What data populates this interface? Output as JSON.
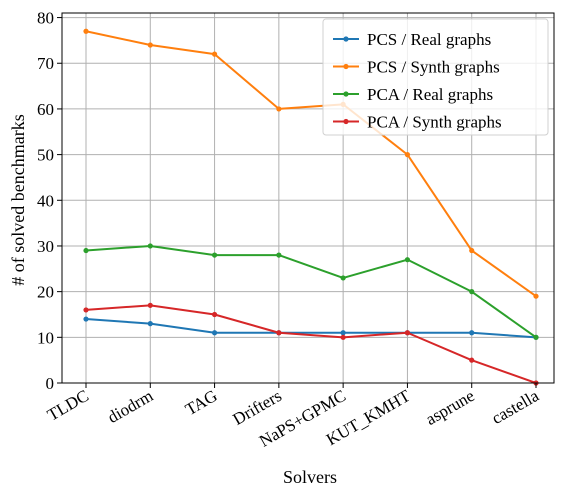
{
  "chart_data": {
    "type": "line",
    "xlabel": "Solvers",
    "ylabel": "# of solved benchmarks",
    "ylim": [
      0,
      81
    ],
    "yticks": [
      0,
      10,
      20,
      30,
      40,
      50,
      60,
      70,
      80
    ],
    "grid": true,
    "legend_position": "top-right",
    "categories": [
      "TLDC",
      "diodrm",
      "TAG",
      "Drifters",
      "NaPS+GPMC",
      "KUT_KMHT",
      "asprune",
      "castella"
    ],
    "series": [
      {
        "name": "PCS / Real graphs",
        "color": "#1f77b4",
        "values": [
          14,
          13,
          11,
          11,
          11,
          11,
          11,
          10
        ]
      },
      {
        "name": "PCS / Synth graphs",
        "color": "#ff7f0e",
        "values": [
          77,
          74,
          72,
          60,
          61,
          50,
          29,
          19
        ]
      },
      {
        "name": "PCA / Real graphs",
        "color": "#2ca02c",
        "values": [
          29,
          30,
          28,
          28,
          23,
          27,
          20,
          10
        ]
      },
      {
        "name": "PCA / Synth graphs",
        "color": "#d62728",
        "values": [
          16,
          17,
          15,
          11,
          10,
          11,
          5,
          0
        ]
      }
    ]
  }
}
